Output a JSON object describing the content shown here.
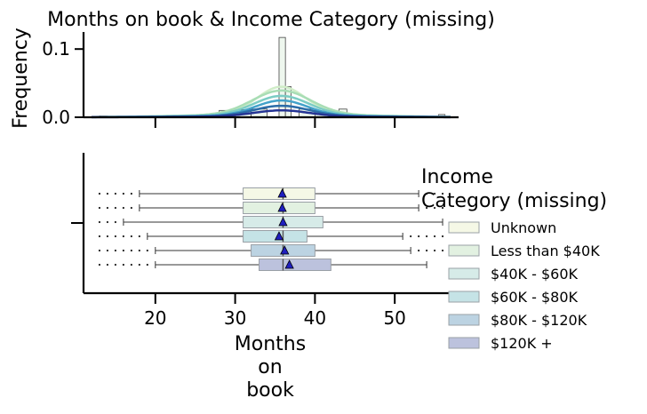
{
  "chart_data": [
    {
      "type": "histogram",
      "title": "Months on book & Income Category (missing)",
      "ylabel": "Frequency",
      "xlim": [
        11,
        58
      ],
      "ylim": [
        0,
        0.125
      ],
      "y_ticks": [
        0.0,
        0.1
      ],
      "y_tick_labels": [
        "0.0",
        "0.1"
      ],
      "bins": [
        {
          "x0": 13,
          "x1": 14,
          "h": 0.002
        },
        {
          "x0": 18,
          "x1": 19,
          "h": 0.002
        },
        {
          "x0": 28,
          "x1": 30,
          "h": 0.01
        },
        {
          "x0": 30,
          "x1": 32,
          "h": 0.011
        },
        {
          "x0": 32,
          "x1": 34,
          "h": 0.012
        },
        {
          "x0": 35.5,
          "x1": 36.3,
          "h": 0.117
        },
        {
          "x0": 36.3,
          "x1": 37,
          "h": 0.045
        },
        {
          "x0": 38,
          "x1": 40,
          "h": 0.012
        },
        {
          "x0": 40,
          "x1": 42,
          "h": 0.009
        },
        {
          "x0": 43,
          "x1": 44,
          "h": 0.012
        },
        {
          "x0": 55.5,
          "x1": 56.3,
          "h": 0.004
        }
      ],
      "kde_series": [
        {
          "name": "Unknown",
          "color": "#d0edc8",
          "peak": 0.04,
          "width": 3.0
        },
        {
          "name": "Less than $40K",
          "color": "#a8ddb5",
          "peak": 0.035,
          "width": 3.6
        },
        {
          "name": "$40K - $60K",
          "color": "#7bccc4",
          "peak": 0.028,
          "width": 3.4
        },
        {
          "name": "$60K - $80K",
          "color": "#43a2ca",
          "peak": 0.022,
          "width": 3.2
        },
        {
          "name": "$80K - $120K",
          "color": "#2b6ca8",
          "peak": 0.015,
          "width": 3.4
        },
        {
          "name": "$120K +",
          "color": "#253494",
          "peak": 0.009,
          "width": 3.5
        }
      ]
    },
    {
      "type": "box",
      "xlabel": "Months\non\nbook",
      "xlim": [
        11,
        58
      ],
      "x_ticks": [
        20,
        30,
        40,
        50
      ],
      "x_tick_labels": [
        "20",
        "30",
        "40",
        "50"
      ],
      "legend_title": "Income\nCategory (missing)",
      "legend_position": "right",
      "series": [
        {
          "name": "Unknown",
          "color": "#f5f8e6",
          "whislo": 18,
          "q1": 31,
          "med": 36,
          "q3": 40,
          "whishi": 53,
          "mean": 35.9,
          "fliers": [
            13,
            14,
            15,
            16,
            17,
            54,
            55,
            56
          ]
        },
        {
          "name": "Less than $40K",
          "color": "#e2f1e1",
          "whislo": 18,
          "q1": 31,
          "med": 36,
          "q3": 40,
          "whishi": 53,
          "mean": 35.9,
          "fliers": [
            13,
            14,
            15,
            16,
            17,
            54,
            55,
            56
          ]
        },
        {
          "name": "$40K - $60K",
          "color": "#d6ebe8",
          "whislo": 16,
          "q1": 31,
          "med": 36,
          "q3": 41,
          "whishi": 56,
          "mean": 36.0,
          "fliers": [
            13,
            14,
            15
          ]
        },
        {
          "name": "$60K - $80K",
          "color": "#c5e3e6",
          "whislo": 19,
          "q1": 31,
          "med": 36,
          "q3": 39,
          "whishi": 51,
          "mean": 35.5,
          "fliers": [
            13,
            14,
            15,
            16,
            17,
            18,
            52,
            53,
            54,
            55,
            56
          ]
        },
        {
          "name": "$80K - $120K",
          "color": "#bcd3e2",
          "whislo": 20,
          "q1": 32,
          "med": 36,
          "q3": 40,
          "whishi": 52,
          "mean": 36.2,
          "fliers": [
            13,
            14,
            15,
            16,
            17,
            18,
            19,
            53,
            54,
            55,
            56
          ]
        },
        {
          "name": "$120K +",
          "color": "#bcc2dd",
          "whislo": 20,
          "q1": 33,
          "med": 36,
          "q3": 42,
          "whishi": 54,
          "mean": 36.8,
          "fliers": [
            13,
            14,
            15,
            16,
            17,
            18,
            19
          ]
        }
      ]
    }
  ]
}
